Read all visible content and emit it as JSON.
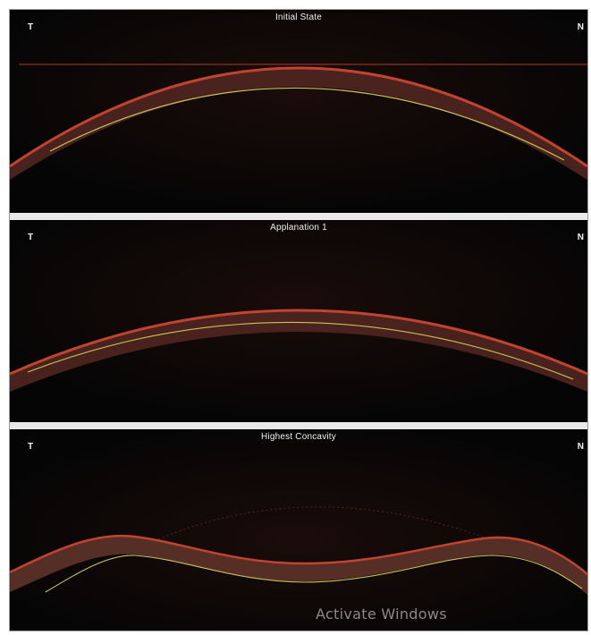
{
  "panels": [
    {
      "title": "Initial State",
      "left_label": "T",
      "right_label": "N"
    },
    {
      "title": "Applanation 1",
      "left_label": "T",
      "right_label": "N"
    },
    {
      "title": "Highest Concavity",
      "left_label": "T",
      "right_label": "N"
    }
  ],
  "watermark": "Activate Windows",
  "colors": {
    "background": "#000000",
    "cornea_outer": "#b83a2a",
    "cornea_fill": "#5a2a24",
    "endothelium_line": "#c9c35a",
    "separator": "#e9e9e9"
  }
}
